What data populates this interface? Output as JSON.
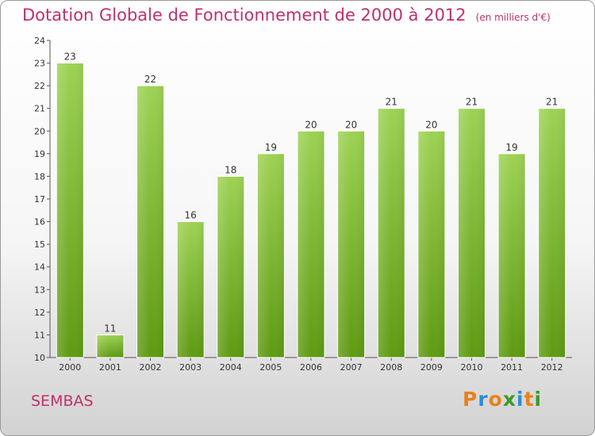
{
  "chart_data": {
    "type": "bar",
    "title": "Dotation Globale de Fonctionnement de 2000 à 2012",
    "subtitle": "(en milliers d'€)",
    "categories": [
      "2000",
      "2001",
      "2002",
      "2003",
      "2004",
      "2005",
      "2006",
      "2007",
      "2008",
      "2009",
      "2010",
      "2011",
      "2012"
    ],
    "values": [
      23,
      11,
      22,
      16,
      18,
      19,
      20,
      20,
      21,
      20,
      21,
      19,
      21
    ],
    "ylim": [
      10,
      24
    ],
    "yticks": [
      10,
      11,
      12,
      13,
      14,
      15,
      16,
      17,
      18,
      19,
      20,
      21,
      22,
      23,
      24
    ],
    "xlabel": "",
    "ylabel": "",
    "grid": false,
    "colors": {
      "bar_top": "#9dd254",
      "bar_bottom": "#5e9a12",
      "title": "#c0306a"
    }
  },
  "footer": {
    "place": "SEMBAS"
  },
  "logo": {
    "letters": [
      {
        "ch": "P",
        "color": "#e8821a"
      },
      {
        "ch": "r",
        "color": "#2a8fd4"
      },
      {
        "ch": "o",
        "color": "#e8821a"
      },
      {
        "ch": "x",
        "color": "#3c9a2a"
      },
      {
        "ch": "i",
        "color": "#2a8fd4"
      },
      {
        "ch": "t",
        "color": "#e8821a"
      },
      {
        "ch": "i",
        "color": "#3c9a2a"
      }
    ]
  }
}
